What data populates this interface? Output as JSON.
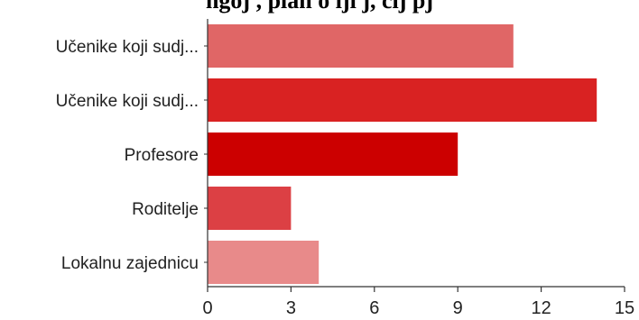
{
  "chart_data": {
    "type": "bar",
    "orientation": "horizontal",
    "title": "ngoj , plan o lji j, cij pj",
    "categories": [
      "Učenike koji sudj...",
      "Učenike koji sudj...",
      "Profesore",
      "Roditelje",
      "Lokalnu zajednicu"
    ],
    "values": [
      11,
      14,
      9,
      3,
      4
    ],
    "colors": [
      "#e06666",
      "#d92222",
      "#cc0000",
      "#dc4044",
      "#e88a8a"
    ],
    "xlim": [
      0,
      15
    ],
    "xticks": [
      0,
      3,
      6,
      9,
      12,
      15
    ],
    "grid": false,
    "legend": "none"
  }
}
